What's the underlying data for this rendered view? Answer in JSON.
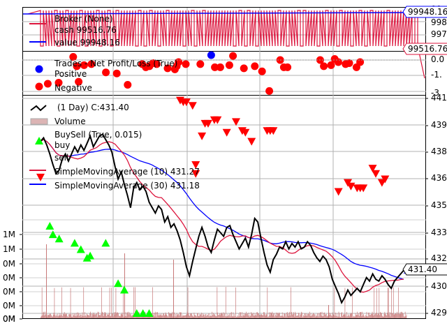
{
  "chart_data": [
    {
      "panel": "broker",
      "type": "line",
      "legend": [
        {
          "label": "Broker (None)",
          "color": "#dc143c"
        },
        {
          "label": "cash 99516.76",
          "color": "#dc143c"
        },
        {
          "label": "value 99948.16",
          "color": "#0000ff"
        }
      ],
      "y_ticks": [
        "998",
        "997"
      ],
      "y_ticks_partial": [
        "99"
      ],
      "tags": [
        {
          "text": "99948.16",
          "value": 99948.16,
          "color": "#0000ff"
        },
        {
          "text": "99516.76",
          "value": 99516.76,
          "color": "#dc143c"
        }
      ],
      "ylim": [
        99700,
        99990
      ]
    },
    {
      "panel": "trades",
      "type": "scatter",
      "legend": [
        {
          "label": "Trades - Net Profit/Loss (True)"
        },
        {
          "label": "Positive",
          "marker": "blue-circle"
        },
        {
          "label": "Negative",
          "marker": "red-circle"
        }
      ],
      "y_ticks": [
        "0.0",
        "-1.",
        "-3"
      ],
      "positive_x": [
        0.47
      ],
      "negative": {
        "x": [
          0.02,
          0.05,
          0.09,
          0.1,
          0.105,
          0.12,
          0.14,
          0.18,
          0.21,
          0.24,
          0.28,
          0.29,
          0.3,
          0.31,
          0.32,
          0.35,
          0.37,
          0.375,
          0.38,
          0.4,
          0.44,
          0.48,
          0.495,
          0.52,
          0.53,
          0.56,
          0.59,
          0.61,
          0.63,
          0.66,
          0.67,
          0.68,
          0.77,
          0.78,
          0.8,
          0.81,
          0.82,
          0.84,
          0.85,
          0.87,
          0.88
        ],
        "y": [
          -2.3,
          -2.2,
          0.3,
          -0.6,
          -2.1,
          -0.5,
          -0.4,
          -1.2,
          -1.3,
          -2.4,
          -0.4,
          -0.7,
          -0.6,
          -0.3,
          -0.4,
          -0.8,
          -0.9,
          -0.6,
          -0.2,
          -0.4,
          -0.4,
          -0.7,
          -0.7,
          -0.5,
          0.4,
          -0.8,
          -0.6,
          -1.1,
          -3.0,
          0.0,
          -0.7,
          -0.7,
          0.0,
          -0.6,
          -0.5,
          0.1,
          -0.2,
          -0.4,
          -0.3,
          -0.7,
          -0.2
        ]
      }
    },
    {
      "panel": "price",
      "type": "line",
      "legend": [
        {
          "label": "(1 Day) C:431.40",
          "color": "#000000"
        },
        {
          "label": "Volume",
          "color": "#dcb4b4"
        },
        {
          "label": "BuySell (True, 0.015)"
        },
        {
          "label": "buy",
          "marker": "green-triangle-up"
        },
        {
          "label": "sell",
          "marker": "red-triangle-down"
        },
        {
          "label": "SimpleMovingAverage (10) 431.27",
          "color": "#dc143c"
        },
        {
          "label": "SimpleMovingAverage (30) 431.18",
          "color": "#0000ff"
        }
      ],
      "right_ticks": [
        "441",
        "439",
        "438",
        "436",
        "435",
        "433",
        "432",
        "430",
        "429"
      ],
      "left_ticks": [
        "1M",
        "1M",
        "0M",
        "0M",
        "0M",
        "0M",
        "0M",
        "0M"
      ],
      "last_price_tag": "431.40",
      "ylim_right": [
        429,
        441
      ],
      "close": [
        438.6,
        438.8,
        438.4,
        437.9,
        437.3,
        436.8,
        437.0,
        437.6,
        437.9,
        437.5,
        437.9,
        438.3,
        438.0,
        438.4,
        438.1,
        438.5,
        438.9,
        438.3,
        438.6,
        438.9,
        439.0,
        438.7,
        438.4,
        438.0,
        437.2,
        436.5,
        436.9,
        436.2,
        435.6,
        434.9,
        436.0,
        436.3,
        435.9,
        436.1,
        435.8,
        435.2,
        434.9,
        434.6,
        435.0,
        434.8,
        434.1,
        434.4,
        433.8,
        434.0,
        433.6,
        433.1,
        432.4,
        431.6,
        431.1,
        431.9,
        432.6,
        433.3,
        433.8,
        433.3,
        432.7,
        432.4,
        433.1,
        433.7,
        433.5,
        433.3,
        433.8,
        433.9,
        433.4,
        433.0,
        432.6,
        432.9,
        433.2,
        432.7,
        433.4,
        434.3,
        434.1,
        433.2,
        432.4,
        431.7,
        431.3,
        432.0,
        432.3,
        432.7,
        432.6,
        433.0,
        432.6,
        432.9,
        432.7,
        433.0,
        432.6,
        432.7,
        433.0,
        432.8,
        432.4,
        432.1,
        431.9,
        432.2,
        432.0,
        431.6,
        430.9,
        430.5,
        430.1,
        429.6,
        429.9,
        430.3,
        430.0,
        430.2,
        430.4,
        430.2,
        430.6,
        431.0,
        430.8,
        431.2,
        430.9,
        430.8,
        431.1,
        430.9,
        430.6,
        430.4,
        430.8,
        431.0,
        431.2,
        431.4
      ],
      "buy_points": [
        {
          "i": 0,
          "p": 437.0
        },
        {
          "i": 3,
          "p": 433.0
        },
        {
          "i": 4,
          "p": 432.6
        },
        {
          "i": 6,
          "p": 432.4
        },
        {
          "i": 11,
          "p": 432.2
        },
        {
          "i": 13,
          "p": 431.9
        },
        {
          "i": 15,
          "p": 431.5
        },
        {
          "i": 16,
          "p": 431.6
        },
        {
          "i": 21,
          "p": 432.2
        },
        {
          "i": 25,
          "p": 430.3
        },
        {
          "i": 27,
          "p": 430.0
        },
        {
          "i": 31,
          "p": 428.9
        },
        {
          "i": 33,
          "p": 428.9
        },
        {
          "i": 35,
          "p": 428.9
        }
      ],
      "sell_points": [
        {
          "i": 0,
          "p": 436.6
        },
        {
          "i": 45,
          "p": 440.9
        },
        {
          "i": 46,
          "p": 440.8
        },
        {
          "i": 47,
          "p": 440.8
        },
        {
          "i": 49,
          "p": 440.6
        },
        {
          "i": 50,
          "p": 436.8
        },
        {
          "i": 50,
          "p": 437.3
        },
        {
          "i": 52,
          "p": 438.9
        },
        {
          "i": 53,
          "p": 439.6
        },
        {
          "i": 54,
          "p": 439.6
        },
        {
          "i": 56,
          "p": 439.8
        },
        {
          "i": 57,
          "p": 439.8
        },
        {
          "i": 60,
          "p": 439.1
        },
        {
          "i": 63,
          "p": 439.7
        },
        {
          "i": 65,
          "p": 439.2
        },
        {
          "i": 66,
          "p": 439.1
        },
        {
          "i": 68,
          "p": 438.6
        },
        {
          "i": 73,
          "p": 439.2
        },
        {
          "i": 74,
          "p": 439.2
        },
        {
          "i": 75,
          "p": 439.2
        },
        {
          "i": 96,
          "p": 435.8
        },
        {
          "i": 99,
          "p": 436.3
        },
        {
          "i": 100,
          "p": 436.1
        },
        {
          "i": 102,
          "p": 436.0
        },
        {
          "i": 103,
          "p": 436.0
        },
        {
          "i": 104,
          "p": 436.0
        },
        {
          "i": 107,
          "p": 437.1
        },
        {
          "i": 108,
          "p": 436.8
        },
        {
          "i": 110,
          "p": 436.3
        },
        {
          "i": 111,
          "p": 436.5
        }
      ]
    }
  ]
}
